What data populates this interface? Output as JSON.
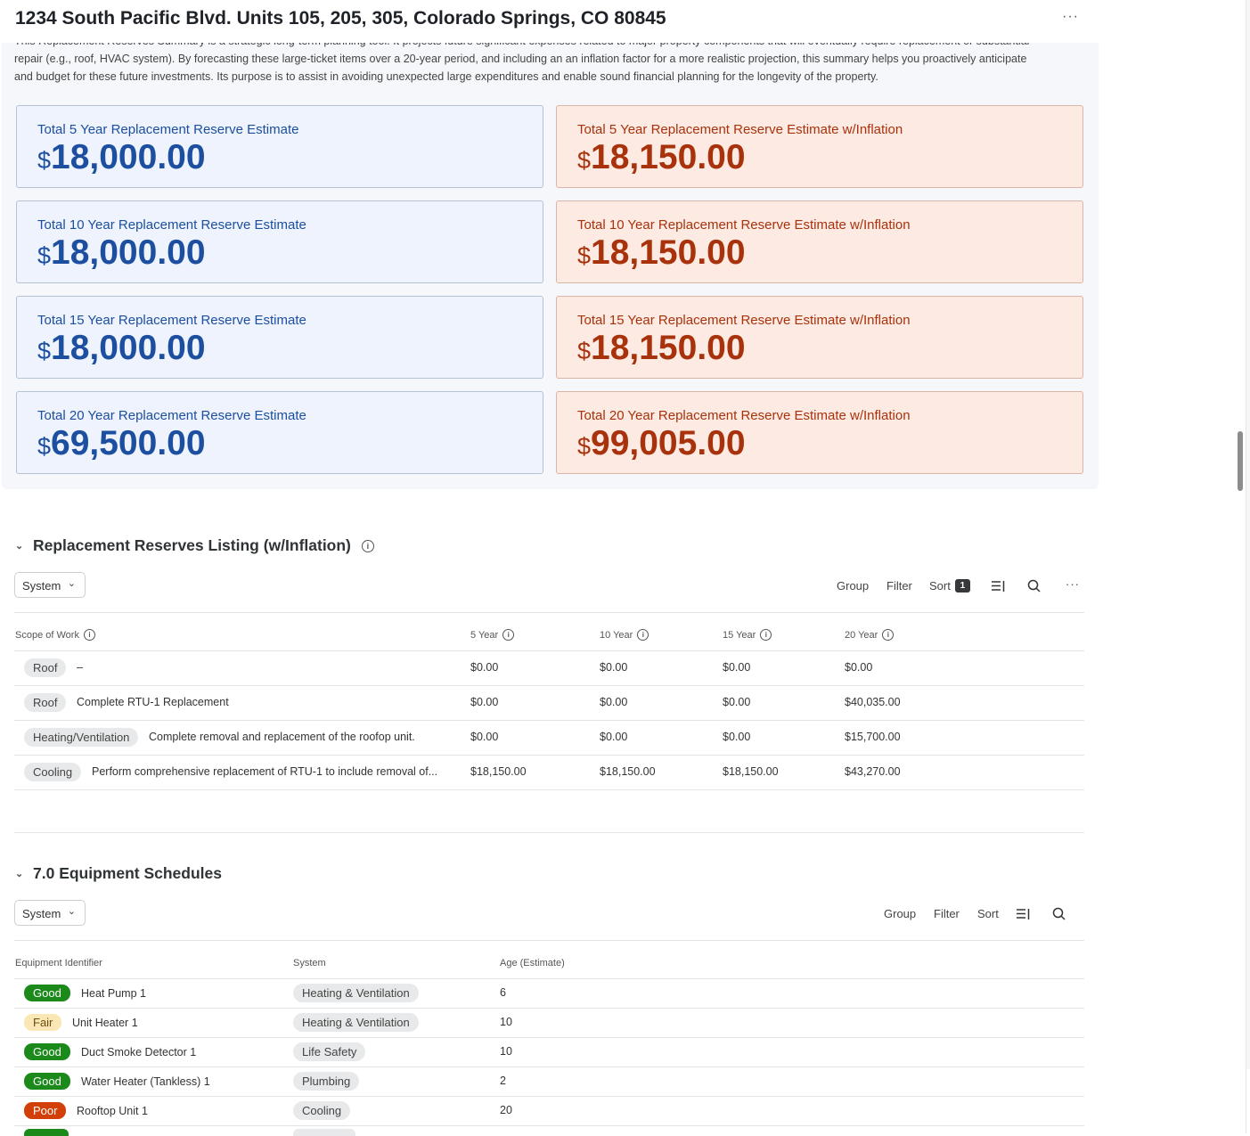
{
  "page": {
    "title": "1234 South Pacific Blvd. Units 105, 205, 305, Colorado Springs, CO 80845",
    "more_icon": "···"
  },
  "summary": {
    "intro_cut": "This Replacement Reserves Summary is a strategic long-term planning tool. It projects future significant expenses related to major property components that will eventually require replacement or substantial",
    "intro_line2": "repair (e.g., roof, HVAC system). By forecasting these large-ticket items over a 20-year period, and including an an inflation factor for a more realistic projection, this summary helps you proactively anticipate",
    "intro_line3": "and budget for these future investments. Its purpose is to assist in avoiding unexpected large expenditures and enable sound financial planning for the longevity of the property.",
    "cards": [
      {
        "label": "Total 5 Year Replacement Reserve Estimate",
        "currency": "$",
        "value": "18,000.00"
      },
      {
        "label": "Total 5 Year Replacement Reserve Estimate w/Inflation",
        "currency": "$",
        "value": "18,150.00"
      },
      {
        "label": "Total 10 Year Replacement Reserve Estimate",
        "currency": "$",
        "value": "18,000.00"
      },
      {
        "label": "Total 10 Year Replacement Reserve Estimate w/Inflation",
        "currency": "$",
        "value": "18,150.00"
      },
      {
        "label": "Total 15 Year Replacement Reserve Estimate",
        "currency": "$",
        "value": "18,000.00"
      },
      {
        "label": "Total 15 Year Replacement Reserve Estimate w/Inflation",
        "currency": "$",
        "value": "18,150.00"
      },
      {
        "label": "Total 20 Year Replacement Reserve Estimate",
        "currency": "$",
        "value": "69,500.00"
      },
      {
        "label": "Total 20 Year Replacement Reserve Estimate w/Inflation",
        "currency": "$",
        "value": "99,005.00"
      }
    ],
    "colors": {
      "blue_text": "#1c4fa0",
      "blue_bg": "#eef3fd",
      "orange_text": "#a8320b",
      "orange_bg": "#fdeae3"
    }
  },
  "reserves": {
    "title": "Replacement Reserves Listing (w/Inflation)",
    "group_by": "System",
    "toolbar": {
      "group": "Group",
      "filter": "Filter",
      "sort": "Sort",
      "sort_count": "1"
    },
    "columns": [
      "Scope of Work",
      "5 Year",
      "10 Year",
      "15 Year",
      "20 Year"
    ],
    "rows": [
      {
        "system": "Roof",
        "scope": "–",
        "y5": "$0.00",
        "y10": "$0.00",
        "y15": "$0.00",
        "y20": "$0.00"
      },
      {
        "system": "Roof",
        "scope": "Complete RTU-1 Replacement",
        "y5": "$0.00",
        "y10": "$0.00",
        "y15": "$0.00",
        "y20": "$40,035.00"
      },
      {
        "system": "Heating/Ventilation",
        "scope": "Complete removal and replacement of the roofop unit.",
        "y5": "$0.00",
        "y10": "$0.00",
        "y15": "$0.00",
        "y20": "$15,700.00"
      },
      {
        "system": "Cooling",
        "scope": "Perform comprehensive replacement of RTU-1 to include removal of...",
        "y5": "$18,150.00",
        "y10": "$18,150.00",
        "y15": "$18,150.00",
        "y20": "$43,270.00"
      }
    ]
  },
  "equipment": {
    "title": "7.0 Equipment Schedules",
    "group_by": "System",
    "toolbar": {
      "group": "Group",
      "filter": "Filter",
      "sort": "Sort"
    },
    "columns": [
      "Equipment Identifier",
      "System",
      "Age (Estimate)"
    ],
    "rows": [
      {
        "condition": "Good",
        "name": "Heat Pump 1",
        "system": "Heating & Ventilation",
        "age": "6"
      },
      {
        "condition": "Fair",
        "name": "Unit Heater 1",
        "system": "Heating & Ventilation",
        "age": "10"
      },
      {
        "condition": "Good",
        "name": "Duct Smoke Detector 1",
        "system": "Life Safety",
        "age": "10"
      },
      {
        "condition": "Good",
        "name": "Water Heater (Tankless) 1",
        "system": "Plumbing",
        "age": "2"
      },
      {
        "condition": "Poor",
        "name": "Rooftop Unit 1",
        "system": "Cooling",
        "age": "20"
      }
    ],
    "status_colors": {
      "Good": "#1b8a1b",
      "Fair": "#fbe7b5",
      "Poor": "#d23f08"
    }
  }
}
